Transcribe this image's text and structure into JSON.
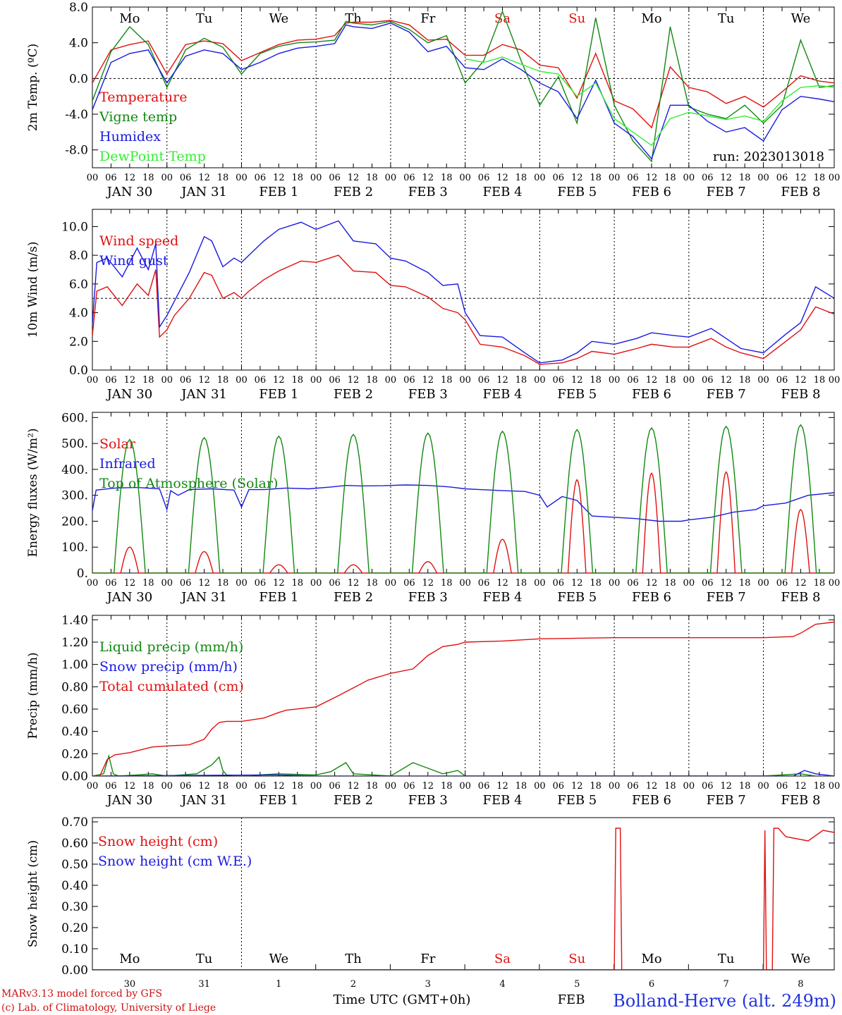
{
  "colors": {
    "temperature": "#e01010",
    "vigne": "#118811",
    "humidex": "#1a1ae0",
    "dewpoint": "#33ee33",
    "text": "#000000",
    "weekend": "#e01010",
    "footer_left": "#d01010",
    "footer_right": "#2233dd"
  },
  "x_axis": {
    "hour_ticks": [
      "00",
      "06",
      "12",
      "18"
    ],
    "final_tick": "00",
    "date_labels": [
      "JAN 30",
      "JAN 31",
      "FEB  1",
      "FEB  2",
      "FEB  3",
      "FEB  4",
      "FEB  5",
      "FEB  6",
      "FEB  7",
      "FEB  8"
    ],
    "weekdays": [
      "Mo",
      "Tu",
      "We",
      "Th",
      "Fr",
      "Sa",
      "Su",
      "Mo",
      "Tu",
      "We"
    ],
    "weekend_index": [
      5,
      6
    ],
    "days_in_range": 9.95
  },
  "chart_data": [
    {
      "id": "temp",
      "type": "line",
      "ylabel": "2m Temp. (ºC)",
      "ylim": [
        -10,
        8
      ],
      "ticks": [
        {
          "v": 8,
          "t": "8.0"
        },
        {
          "v": 4,
          "t": "4.0"
        },
        {
          "v": 0,
          "t": "0.0"
        },
        {
          "v": -4,
          "t": "-4.0"
        },
        {
          "v": -8,
          "t": "-8.0"
        }
      ],
      "ref_line": 0,
      "note": "run: 2023013018",
      "series": [
        {
          "name": "Temperature",
          "color": "#e01010",
          "x": [
            0,
            0.25,
            0.5,
            0.75,
            1,
            1.25,
            1.5,
            1.75,
            2,
            2.25,
            2.5,
            2.75,
            3,
            3.25,
            3.4,
            3.5,
            3.75,
            4,
            4.25,
            4.5,
            4.75,
            5,
            5.25,
            5.5,
            5.75,
            6,
            6.25,
            6.5,
            6.75,
            7,
            7.25,
            7.5,
            7.75,
            8,
            8.25,
            8.5,
            8.75,
            9,
            9.25,
            9.5,
            9.75,
            9.95
          ],
          "y": [
            -0.5,
            3.2,
            3.8,
            4.2,
            0.5,
            3.8,
            4.2,
            3.9,
            2.0,
            2.9,
            3.8,
            4.3,
            4.4,
            4.8,
            6.2,
            6.3,
            6.3,
            6.5,
            6.0,
            4.3,
            4.4,
            2.6,
            2.6,
            3.8,
            3.2,
            1.5,
            1.2,
            -2.2,
            2.8,
            -2.5,
            -3.4,
            -5.5,
            1.3,
            -1.0,
            -1.5,
            -2.8,
            -2.0,
            -3.2,
            -1.5,
            0.3,
            -0.3,
            -0.5
          ]
        },
        {
          "name": "Vigne temp",
          "color": "#118811",
          "x": [
            0,
            0.25,
            0.5,
            0.75,
            1,
            1.25,
            1.5,
            1.75,
            2,
            2.25,
            2.5,
            2.75,
            3,
            3.25,
            3.4,
            3.5,
            3.75,
            4,
            4.25,
            4.5,
            4.75,
            5,
            5.25,
            5.5,
            5.75,
            6,
            6.25,
            6.5,
            6.75,
            7,
            7.25,
            7.5,
            7.75,
            8,
            8.25,
            8.5,
            8.75,
            9,
            9.25,
            9.5,
            9.75,
            9.95
          ],
          "y": [
            -2.5,
            3.0,
            5.8,
            3.8,
            -1.0,
            3.2,
            4.5,
            3.5,
            0.5,
            2.8,
            3.6,
            4.0,
            4.1,
            4.3,
            6.4,
            6.2,
            6.0,
            6.4,
            5.5,
            4.0,
            4.8,
            -0.5,
            2.0,
            7.5,
            2.0,
            -3.0,
            0.2,
            -5.0,
            6.8,
            -3.0,
            -7.0,
            -9.3,
            5.8,
            -3.2,
            -4.0,
            -4.5,
            -3.0,
            -5.0,
            -3.0,
            4.3,
            -1.0,
            -0.8
          ]
        },
        {
          "name": "Humidex",
          "color": "#1a1ae0",
          "x": [
            0,
            0.25,
            0.5,
            0.75,
            1,
            1.25,
            1.5,
            1.75,
            2,
            2.25,
            2.5,
            2.75,
            3,
            3.25,
            3.4,
            3.5,
            3.75,
            4,
            4.25,
            4.5,
            4.75,
            5,
            5.25,
            5.5,
            5.75,
            6,
            6.25,
            6.5,
            6.75,
            7,
            7.25,
            7.5,
            7.75,
            8,
            8.25,
            8.5,
            8.75,
            9,
            9.25,
            9.5,
            9.75,
            9.95
          ],
          "y": [
            -3.5,
            1.8,
            2.8,
            3.2,
            -0.5,
            2.5,
            3.2,
            2.8,
            1.0,
            1.8,
            2.8,
            3.4,
            3.6,
            3.9,
            6.0,
            5.8,
            5.6,
            6.2,
            5.2,
            3.0,
            3.6,
            1.2,
            1.0,
            2.2,
            1.0,
            -0.5,
            -1.5,
            -4.5,
            -0.2,
            -5.0,
            -6.5,
            -9.0,
            -3.0,
            -3.0,
            -4.8,
            -6.0,
            -5.5,
            -7.0,
            -3.5,
            -2.0,
            -2.3,
            -2.6
          ]
        },
        {
          "name": "DewPoint Temp",
          "color": "#33ee33",
          "x": [
            5,
            5.25,
            5.5,
            5.75,
            6,
            6.25,
            6.5,
            6.75,
            7,
            7.25,
            7.5,
            7.75,
            8,
            8.25,
            8.5,
            8.75,
            9,
            9.25,
            9.5,
            9.75,
            9.95
          ],
          "y": [
            2.2,
            1.8,
            2.4,
            1.6,
            0.8,
            0.5,
            -2.0,
            -0.5,
            -4.5,
            -6.0,
            -7.5,
            -4.5,
            -3.8,
            -4.2,
            -4.6,
            -4.2,
            -4.8,
            -2.5,
            -1.0,
            -0.8,
            -1.0
          ]
        }
      ]
    },
    {
      "id": "wind",
      "type": "line",
      "ylabel": "10m Wind (m/s)",
      "ylim": [
        0,
        11.2
      ],
      "ticks": [
        {
          "v": 10,
          "t": "10.0"
        },
        {
          "v": 8,
          "t": "8.0"
        },
        {
          "v": 6,
          "t": "6.0"
        },
        {
          "v": 4,
          "t": "4.0"
        },
        {
          "v": 2,
          "t": "2.0"
        },
        {
          "v": 0,
          "t": "0.0"
        }
      ],
      "ref_line": 5,
      "series": [
        {
          "name": "Wind speed",
          "color": "#e01010",
          "x": [
            0,
            0.06,
            0.2,
            0.4,
            0.6,
            0.75,
            0.85,
            0.9,
            1.0,
            1.1,
            1.3,
            1.5,
            1.6,
            1.75,
            1.9,
            2.0,
            2.1,
            2.3,
            2.5,
            2.8,
            3.0,
            3.3,
            3.5,
            3.8,
            4.0,
            4.2,
            4.5,
            4.7,
            4.9,
            5.0,
            5.2,
            5.5,
            5.8,
            6.0,
            6.3,
            6.5,
            6.7,
            7.0,
            7.3,
            7.5,
            7.8,
            8.0,
            8.3,
            8.5,
            8.7,
            9.0,
            9.3,
            9.5,
            9.7,
            9.95
          ],
          "y": [
            2.4,
            5.5,
            5.8,
            4.5,
            6.0,
            5.2,
            7.0,
            2.3,
            2.8,
            3.8,
            5.0,
            6.8,
            6.6,
            5.0,
            5.4,
            5.0,
            5.5,
            6.3,
            6.9,
            7.6,
            7.5,
            8.0,
            6.9,
            6.8,
            5.9,
            5.8,
            5.1,
            4.3,
            4.0,
            3.5,
            1.8,
            1.6,
            1.0,
            0.4,
            0.5,
            0.8,
            1.3,
            1.1,
            1.5,
            1.8,
            1.6,
            1.6,
            2.2,
            1.6,
            1.2,
            0.8,
            2.0,
            2.8,
            4.4,
            3.9
          ]
        },
        {
          "name": "Wind gust",
          "color": "#1a1ae0",
          "x": [
            0,
            0.06,
            0.2,
            0.4,
            0.6,
            0.75,
            0.85,
            0.9,
            1.0,
            1.1,
            1.3,
            1.5,
            1.6,
            1.75,
            1.9,
            2.0,
            2.1,
            2.3,
            2.5,
            2.8,
            3.0,
            3.3,
            3.5,
            3.8,
            4.0,
            4.2,
            4.5,
            4.7,
            4.9,
            5.0,
            5.2,
            5.5,
            5.8,
            6.0,
            6.3,
            6.5,
            6.7,
            7.0,
            7.3,
            7.5,
            7.8,
            8.0,
            8.3,
            8.5,
            8.7,
            9.0,
            9.3,
            9.5,
            9.7,
            9.95
          ],
          "y": [
            3.2,
            7.5,
            7.8,
            6.5,
            8.5,
            7.0,
            8.8,
            3.0,
            3.8,
            4.8,
            6.8,
            9.3,
            9.0,
            7.2,
            7.8,
            7.5,
            8.0,
            9.0,
            9.8,
            10.3,
            9.8,
            10.4,
            9.0,
            8.8,
            7.8,
            7.6,
            6.8,
            5.9,
            6.0,
            4.0,
            2.4,
            2.3,
            1.2,
            0.5,
            0.7,
            1.2,
            2.0,
            1.8,
            2.2,
            2.6,
            2.4,
            2.3,
            2.9,
            2.2,
            1.5,
            1.2,
            2.5,
            3.3,
            5.8,
            5.0
          ]
        }
      ]
    },
    {
      "id": "energy",
      "type": "line",
      "ylabel": "Energy fluxes (W/m²)",
      "ylim": [
        0,
        620
      ],
      "ticks": [
        {
          "v": 600,
          "t": "600."
        },
        {
          "v": 500,
          "t": "500."
        },
        {
          "v": 400,
          "t": "400."
        },
        {
          "v": 300,
          "t": "300."
        },
        {
          "v": 200,
          "t": "200."
        },
        {
          "v": 100,
          "t": "100."
        },
        {
          "v": 0,
          "t": "0."
        }
      ],
      "toa_peaks": [
        515,
        522,
        528,
        535,
        540,
        547,
        553,
        560,
        566,
        572
      ],
      "solar_peaks": [
        100,
        83,
        32,
        32,
        44,
        130,
        360,
        385,
        390,
        245
      ],
      "series": [
        {
          "name": "Solar",
          "color": "#e01010"
        },
        {
          "name": "Infrared",
          "color": "#1a1ae0",
          "x": [
            0,
            0.05,
            0.3,
            0.6,
            0.9,
            1.0,
            1.05,
            1.15,
            1.3,
            1.6,
            1.9,
            2.0,
            2.1,
            2.3,
            2.6,
            2.9,
            3.2,
            3.4,
            3.6,
            3.9,
            4.2,
            4.5,
            4.8,
            5.0,
            5.2,
            5.5,
            5.8,
            6.0,
            6.1,
            6.3,
            6.5,
            6.7,
            7.0,
            7.3,
            7.6,
            7.9,
            8.0,
            8.3,
            8.6,
            8.9,
            9.0,
            9.3,
            9.6,
            9.95
          ],
          "y": [
            240,
            320,
            328,
            330,
            325,
            245,
            318,
            300,
            322,
            325,
            320,
            255,
            322,
            322,
            328,
            325,
            332,
            338,
            336,
            337,
            340,
            338,
            332,
            325,
            322,
            318,
            315,
            300,
            255,
            295,
            280,
            220,
            215,
            210,
            200,
            200,
            205,
            215,
            235,
            245,
            260,
            270,
            300,
            310
          ]
        },
        {
          "name": "Top of Atmosphere (Solar)",
          "color": "#118811"
        }
      ]
    },
    {
      "id": "precip",
      "type": "line",
      "ylabel": "Precip (mm/h)",
      "ylim": [
        0,
        1.44
      ],
      "ticks": [
        {
          "v": 1.4,
          "t": "1.40"
        },
        {
          "v": 1.2,
          "t": "1.20"
        },
        {
          "v": 1.0,
          "t": "1.00"
        },
        {
          "v": 0.8,
          "t": "0.80"
        },
        {
          "v": 0.6,
          "t": "0.60"
        },
        {
          "v": 0.4,
          "t": "0.40"
        },
        {
          "v": 0.2,
          "t": "0.20"
        },
        {
          "v": 0,
          "t": "0.00"
        }
      ],
      "series": [
        {
          "name": "Liquid precip (mm/h)",
          "color": "#118811",
          "x": [
            0,
            0.15,
            0.22,
            0.28,
            0.35,
            0.6,
            0.8,
            1.0,
            1.4,
            1.5,
            1.6,
            1.7,
            1.75,
            1.8,
            2.0,
            2.5,
            3.0,
            3.2,
            3.4,
            3.5,
            4.0,
            4.3,
            4.5,
            4.7,
            4.9,
            5.0,
            5.2,
            6,
            7,
            8,
            9,
            9.5,
            9.7,
            9.95
          ],
          "y": [
            0,
            0.02,
            0.18,
            0.02,
            0.0,
            0.01,
            0.02,
            0.0,
            0.02,
            0.06,
            0.1,
            0.17,
            0.05,
            0.01,
            0.0,
            0.02,
            0.01,
            0.04,
            0.12,
            0.02,
            0.0,
            0.12,
            0.07,
            0.02,
            0.05,
            0.0,
            0.0,
            0,
            0,
            0,
            0,
            0.02,
            0.0,
            0.0
          ]
        },
        {
          "name": "Snow precip (mm/h)",
          "color": "#1a1ae0",
          "x": [
            0,
            2.5,
            3,
            9.4,
            9.55,
            9.7,
            9.95
          ],
          "y": [
            0,
            0.01,
            0.0,
            0.0,
            0.05,
            0.02,
            0.0
          ]
        },
        {
          "name": "Total cumulated (cm)",
          "color": "#e01010",
          "x": [
            0,
            0.1,
            0.2,
            0.3,
            0.5,
            0.8,
            1.0,
            1.3,
            1.5,
            1.6,
            1.7,
            1.8,
            2.0,
            2.3,
            2.5,
            2.6,
            3.0,
            3.3,
            3.5,
            3.7,
            3.9,
            4.0,
            4.3,
            4.5,
            4.7,
            4.9,
            5.0,
            5.5,
            6.0,
            7.0,
            8.0,
            9.0,
            9.4,
            9.5,
            9.7,
            9.95
          ],
          "y": [
            0,
            0.0,
            0.15,
            0.19,
            0.21,
            0.26,
            0.27,
            0.28,
            0.33,
            0.42,
            0.48,
            0.49,
            0.49,
            0.52,
            0.57,
            0.59,
            0.62,
            0.72,
            0.79,
            0.86,
            0.9,
            0.92,
            0.96,
            1.08,
            1.16,
            1.18,
            1.2,
            1.21,
            1.23,
            1.24,
            1.24,
            1.24,
            1.25,
            1.28,
            1.36,
            1.38
          ]
        }
      ]
    },
    {
      "id": "snow",
      "type": "line",
      "ylabel": "Snow height (cm)",
      "ylim": [
        0,
        0.72
      ],
      "ticks": [
        {
          "v": 0.7,
          "t": "0.70"
        },
        {
          "v": 0.6,
          "t": "0.60"
        },
        {
          "v": 0.5,
          "t": "0.50"
        },
        {
          "v": 0.4,
          "t": "0.40"
        },
        {
          "v": 0.3,
          "t": "0.30"
        },
        {
          "v": 0.2,
          "t": "0.20"
        },
        {
          "v": 0.1,
          "t": "0.10"
        },
        {
          "v": 0,
          "t": "0.00"
        }
      ],
      "bottom_days": [
        "30",
        "31",
        "1",
        "2",
        "3",
        "4",
        "5",
        "6",
        "7",
        "8"
      ],
      "series": [
        {
          "name": "Snow height (cm)",
          "color": "#e01010",
          "x": [
            0,
            7.0,
            7.02,
            7.05,
            7.08,
            7.1,
            7.12,
            9.0,
            9.02,
            9.04,
            9.06,
            9.1,
            9.12,
            9.14,
            9.2,
            9.25,
            9.3,
            9.6,
            9.8,
            9.95
          ],
          "y": [
            0,
            0,
            0.67,
            0.67,
            0.67,
            0.0,
            0,
            0,
            0.66,
            0.0,
            0.0,
            0.0,
            0.0,
            0.67,
            0.67,
            0.65,
            0.63,
            0.61,
            0.66,
            0.65
          ]
        },
        {
          "name": "Snow height (cm W.E.)",
          "color": "#1a1ae0",
          "x": [
            0,
            9.95
          ],
          "y": [
            0,
            0
          ]
        }
      ]
    }
  ],
  "footer": {
    "model": "MARv3.13 model forced by GFS",
    "lab": "(c) Lab. of Climatology, University of Liege",
    "xlabel": "Time UTC (GMT+0h)",
    "station": "Bolland-Herve (alt. 249m)",
    "bottom_month": "FEB"
  }
}
